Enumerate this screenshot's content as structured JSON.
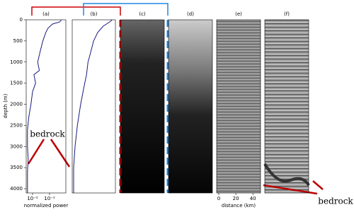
{
  "chart_data": {
    "type": "line",
    "ylabel": "depth (m)",
    "ylim": [
      4100,
      0
    ],
    "yticks": [
      0,
      500,
      1000,
      1500,
      2000,
      2500,
      3000,
      3500,
      4000
    ],
    "panels": [
      {
        "title": "(a)",
        "xlabel": "normalized power",
        "xscale": "log",
        "xlim": [
          0.0042,
          0.91
        ],
        "xticks": [
          {
            "value": 0.01,
            "label": "10⁻²"
          },
          {
            "value": 0.1,
            "label": "10⁻¹"
          }
        ],
        "color": "#1a1a80",
        "depth": [
          0,
          50,
          100,
          200,
          300,
          500,
          700,
          1000,
          1200,
          1300,
          1500,
          1700,
          2000,
          2300,
          2600,
          3000,
          3300,
          3600,
          4100
        ],
        "values": [
          0.5,
          0.4,
          0.15,
          0.08,
          0.06,
          0.04,
          0.03,
          0.02,
          0.025,
          0.012,
          0.015,
          0.01,
          0.008,
          0.006,
          0.005,
          0.005,
          0.0055,
          0.005,
          0.005
        ]
      },
      {
        "title": "(b)",
        "xscale": "log",
        "xlim": [
          0.0042,
          0.91
        ],
        "color": "#1a1a80",
        "depth": [
          0,
          50,
          150,
          300,
          500,
          800,
          1000,
          1300,
          1500,
          2000,
          2500,
          3000,
          3500,
          4100
        ],
        "values": [
          0.6,
          0.45,
          0.2,
          0.1,
          0.06,
          0.04,
          0.03,
          0.025,
          0.02,
          0.012,
          0.008,
          0.006,
          0.005,
          0.005
        ]
      },
      {
        "title": "(c)"
      },
      {
        "title": "(d)"
      },
      {
        "title": "(e)",
        "xlabel": "distance (km)",
        "xlim": [
          -2.5,
          49
        ],
        "xticks": [
          0,
          20,
          40
        ]
      },
      {
        "title": "(f)"
      }
    ],
    "annotations": [
      "bedrock",
      "bedrock"
    ]
  }
}
